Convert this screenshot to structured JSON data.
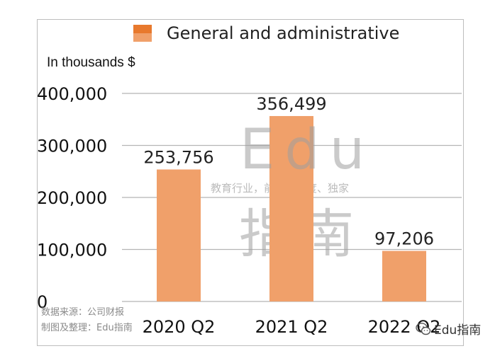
{
  "chart_data": {
    "type": "bar",
    "title": "",
    "unit_label": "In thousands $",
    "ylabel": "",
    "xlabel": "",
    "ylim": [
      0,
      400000
    ],
    "yticks": [
      "0",
      "100,000",
      "200,000",
      "300,000",
      "400,000"
    ],
    "ytick_values": [
      0,
      100000,
      200000,
      300000,
      400000
    ],
    "grid": true,
    "legend_position": "top",
    "categories": [
      "2020 Q2",
      "2021 Q2",
      "2022 Q2"
    ],
    "series": [
      {
        "name": "General and administrative",
        "color": "#f0a06a",
        "values": [
          253756,
          356499,
          97206
        ],
        "data_labels": [
          "253,756",
          "356,499",
          "97,206"
        ]
      }
    ]
  },
  "watermark": {
    "line1": "Edu",
    "tagline": "教育行业，前沿、深度、独家",
    "line2": "指南"
  },
  "source_note": {
    "line1": "数据来源：公司财报",
    "line2": "制图及整理：Edu指南"
  },
  "brand": {
    "text": "Edu指南",
    "icon": "wechat-icon"
  }
}
